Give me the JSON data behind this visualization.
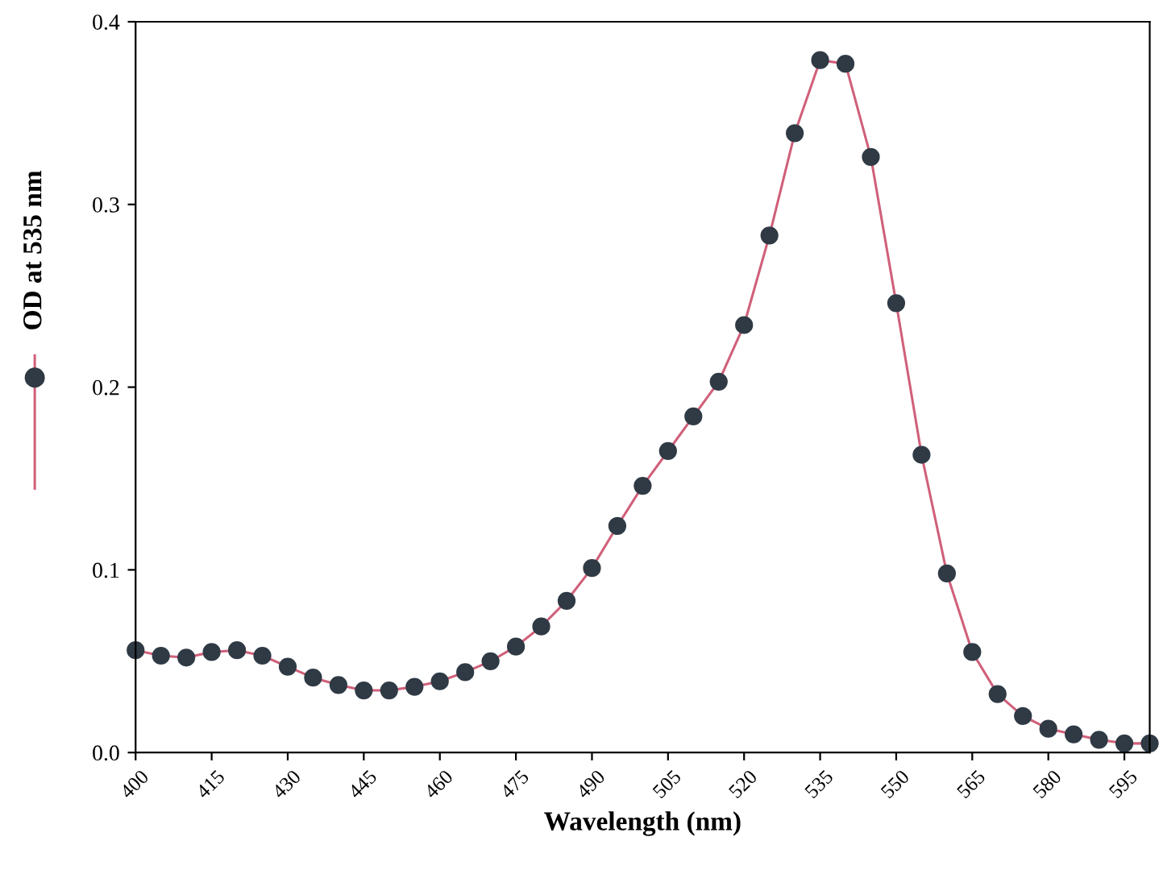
{
  "chart_data": {
    "type": "line",
    "xlabel": "Wavelength (nm)",
    "x": [
      400,
      405,
      410,
      415,
      420,
      425,
      430,
      435,
      440,
      445,
      450,
      455,
      460,
      465,
      470,
      475,
      480,
      485,
      490,
      495,
      500,
      505,
      510,
      515,
      520,
      525,
      530,
      535,
      540,
      545,
      550,
      555,
      560,
      565,
      570,
      575,
      580,
      585,
      590,
      595,
      600
    ],
    "series": [
      {
        "name": "OD at 535 nm",
        "color": "#2f3a45",
        "values": [
          0.056,
          0.053,
          0.052,
          0.055,
          0.056,
          0.053,
          0.047,
          0.041,
          0.037,
          0.034,
          0.034,
          0.036,
          0.039,
          0.044,
          0.05,
          0.058,
          0.069,
          0.083,
          0.101,
          0.124,
          0.146,
          0.165,
          0.184,
          0.203,
          0.234,
          0.283,
          0.339,
          0.379,
          0.377,
          0.326,
          0.246,
          0.163,
          0.098,
          0.055,
          0.032,
          0.02,
          0.013,
          0.01,
          0.007,
          0.005,
          0.005
        ]
      }
    ],
    "xlim": [
      400,
      600
    ],
    "xticks": [
      400,
      415,
      430,
      445,
      460,
      475,
      490,
      505,
      520,
      535,
      550,
      565,
      580,
      595
    ],
    "ylim": [
      0,
      0.4
    ],
    "yticks": [
      {
        "value": 0,
        "label": "0.0"
      },
      0.1,
      0.2,
      0.3,
      0.4
    ],
    "marker": "circle",
    "line_style": "solid",
    "legend": "left",
    "grid": false
  }
}
